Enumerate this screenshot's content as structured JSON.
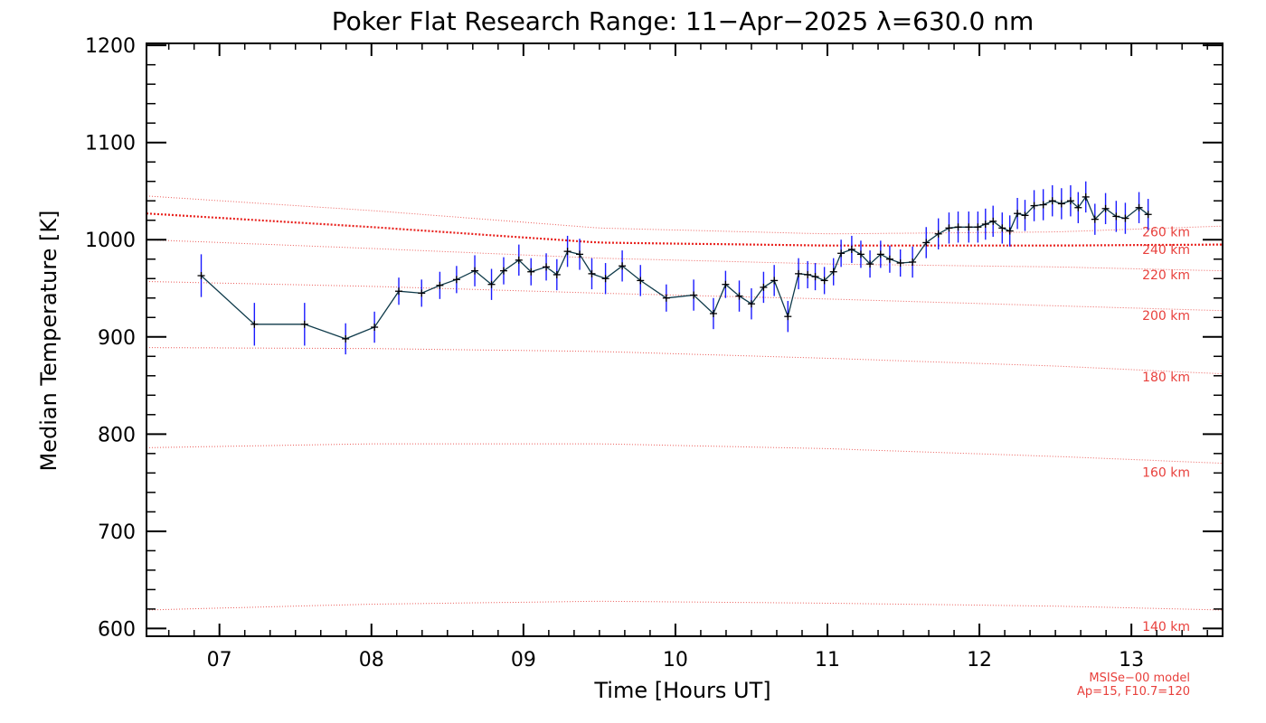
{
  "chart_data": {
    "type": "line",
    "title": "Poker Flat Research Range: 11−Apr−2025 λ=630.0 nm",
    "xlabel": "Time [Hours UT]",
    "ylabel": "Median Temperature [K]",
    "xlim": [
      6.52,
      13.6
    ],
    "ylim": [
      592,
      1202
    ],
    "x_ticks": [
      7,
      8,
      9,
      10,
      11,
      12,
      13
    ],
    "x_tick_labels": [
      "07",
      "08",
      "09",
      "10",
      "11",
      "12",
      "13"
    ],
    "y_ticks": [
      600,
      700,
      800,
      900,
      1000,
      1100,
      1200
    ],
    "y_tick_labels": [
      "600",
      "700",
      "800",
      "900",
      "1000",
      "1100",
      "1200"
    ],
    "series": [
      {
        "name": "Median Temperature",
        "color": "#0e3a4a",
        "errorbar_color": "#1a1aff",
        "points": [
          [
            6.88,
            963,
            22
          ],
          [
            7.23,
            913,
            22
          ],
          [
            7.56,
            913,
            22
          ],
          [
            7.83,
            898,
            16
          ],
          [
            8.02,
            910,
            16
          ],
          [
            8.18,
            947,
            14
          ],
          [
            8.33,
            945,
            14
          ],
          [
            8.45,
            953,
            14
          ],
          [
            8.56,
            959,
            14
          ],
          [
            8.68,
            968,
            16
          ],
          [
            8.79,
            954,
            16
          ],
          [
            8.87,
            968,
            14
          ],
          [
            8.97,
            979,
            16
          ],
          [
            9.05,
            967,
            14
          ],
          [
            9.15,
            972,
            14
          ],
          [
            9.22,
            964,
            16
          ],
          [
            9.29,
            988,
            16
          ],
          [
            9.37,
            985,
            16
          ],
          [
            9.45,
            965,
            16
          ],
          [
            9.54,
            960,
            16
          ],
          [
            9.65,
            973,
            16
          ],
          [
            9.77,
            958,
            16
          ],
          [
            9.94,
            940,
            14
          ],
          [
            10.12,
            943,
            16
          ],
          [
            10.25,
            924,
            16
          ],
          [
            10.33,
            954,
            14
          ],
          [
            10.42,
            942,
            16
          ],
          [
            10.5,
            934,
            16
          ],
          [
            10.58,
            951,
            16
          ],
          [
            10.65,
            958,
            16
          ],
          [
            10.74,
            921,
            16
          ],
          [
            10.81,
            965,
            16
          ],
          [
            10.87,
            964,
            14
          ],
          [
            10.92,
            962,
            14
          ],
          [
            10.98,
            958,
            14
          ],
          [
            11.04,
            967,
            14
          ],
          [
            11.09,
            986,
            14
          ],
          [
            11.16,
            990,
            14
          ],
          [
            11.22,
            985,
            14
          ],
          [
            11.28,
            975,
            14
          ],
          [
            11.35,
            985,
            14
          ],
          [
            11.41,
            980,
            14
          ],
          [
            11.48,
            976,
            14
          ],
          [
            11.56,
            977,
            16
          ],
          [
            11.65,
            997,
            16
          ],
          [
            11.73,
            1006,
            16
          ],
          [
            11.8,
            1012,
            16
          ],
          [
            11.86,
            1013,
            16
          ],
          [
            11.93,
            1013,
            16
          ],
          [
            11.99,
            1013,
            16
          ],
          [
            12.04,
            1016,
            16
          ],
          [
            12.09,
            1019,
            16
          ],
          [
            12.15,
            1012,
            16
          ],
          [
            12.2,
            1009,
            16
          ],
          [
            12.25,
            1027,
            16
          ],
          [
            12.3,
            1025,
            16
          ],
          [
            12.36,
            1035,
            16
          ],
          [
            12.42,
            1036,
            16
          ],
          [
            12.48,
            1040,
            16
          ],
          [
            12.54,
            1037,
            16
          ],
          [
            12.6,
            1040,
            16
          ],
          [
            12.65,
            1033,
            16
          ],
          [
            12.7,
            1044,
            16
          ],
          [
            12.76,
            1021,
            16
          ],
          [
            12.83,
            1032,
            16
          ],
          [
            12.9,
            1024,
            16
          ],
          [
            12.96,
            1022,
            16
          ],
          [
            13.05,
            1033,
            16
          ],
          [
            13.11,
            1026,
            16
          ]
        ]
      }
    ],
    "model_curves": [
      {
        "label": "140 km",
        "color": "#e8403c",
        "style": "dotted",
        "x": [
          6.52,
          8.0,
          9.5,
          11.0,
          12.5,
          13.6
        ],
        "y": [
          619,
          625,
          628,
          626,
          623,
          619
        ]
      },
      {
        "label": "160 km",
        "color": "#e8403c",
        "style": "dotted",
        "x": [
          6.52,
          8.0,
          9.5,
          11.0,
          12.5,
          13.6
        ],
        "y": [
          786,
          790,
          790,
          785,
          777,
          770
        ]
      },
      {
        "label": "180 km",
        "color": "#e8403c",
        "style": "dotted",
        "x": [
          6.52,
          8.0,
          9.5,
          11.0,
          12.5,
          13.6
        ],
        "y": [
          889,
          888,
          885,
          878,
          870,
          862
        ]
      },
      {
        "label": "200 km",
        "color": "#e8403c",
        "style": "dotted",
        "x": [
          6.52,
          8.0,
          9.5,
          11.0,
          12.5,
          13.6
        ],
        "y": [
          957,
          952,
          945,
          939,
          932,
          927
        ]
      },
      {
        "label": "220 km",
        "color": "#e8403c",
        "style": "dotted",
        "x": [
          6.52,
          8.0,
          9.5,
          11.0,
          12.5,
          13.6
        ],
        "y": [
          1000,
          991,
          981,
          975,
          972,
          968
        ]
      },
      {
        "label": "240 km",
        "color": "#e8403c",
        "style": "dotted",
        "x": [
          6.52,
          8.0,
          9.5,
          11.0,
          12.5,
          13.6
        ],
        "y": [
          1027,
          1013,
          997,
          994,
          994,
          995
        ]
      },
      {
        "label": "260 km",
        "color": "#e8403c",
        "style": "dotted",
        "x": [
          6.52,
          8.0,
          9.5,
          11.0,
          12.5,
          13.6
        ],
        "y": [
          1045,
          1030,
          1012,
          1006,
          1008,
          1014
        ]
      }
    ],
    "highlight_curve": {
      "label": "240 km",
      "color": "#e8201c",
      "style": "dotted-bold"
    },
    "km_labels": [
      {
        "text": "260 km",
        "y": 1008
      },
      {
        "text": "240 km",
        "y": 990
      },
      {
        "text": "220 km",
        "y": 964
      },
      {
        "text": "200 km",
        "y": 922
      },
      {
        "text": "180 km",
        "y": 859
      },
      {
        "text": "160 km",
        "y": 761
      },
      {
        "text": "140 km",
        "y": 602
      }
    ],
    "annotation": {
      "line1": "MSISe−00 model",
      "line2": "Ap=15, F10.7=120"
    }
  }
}
